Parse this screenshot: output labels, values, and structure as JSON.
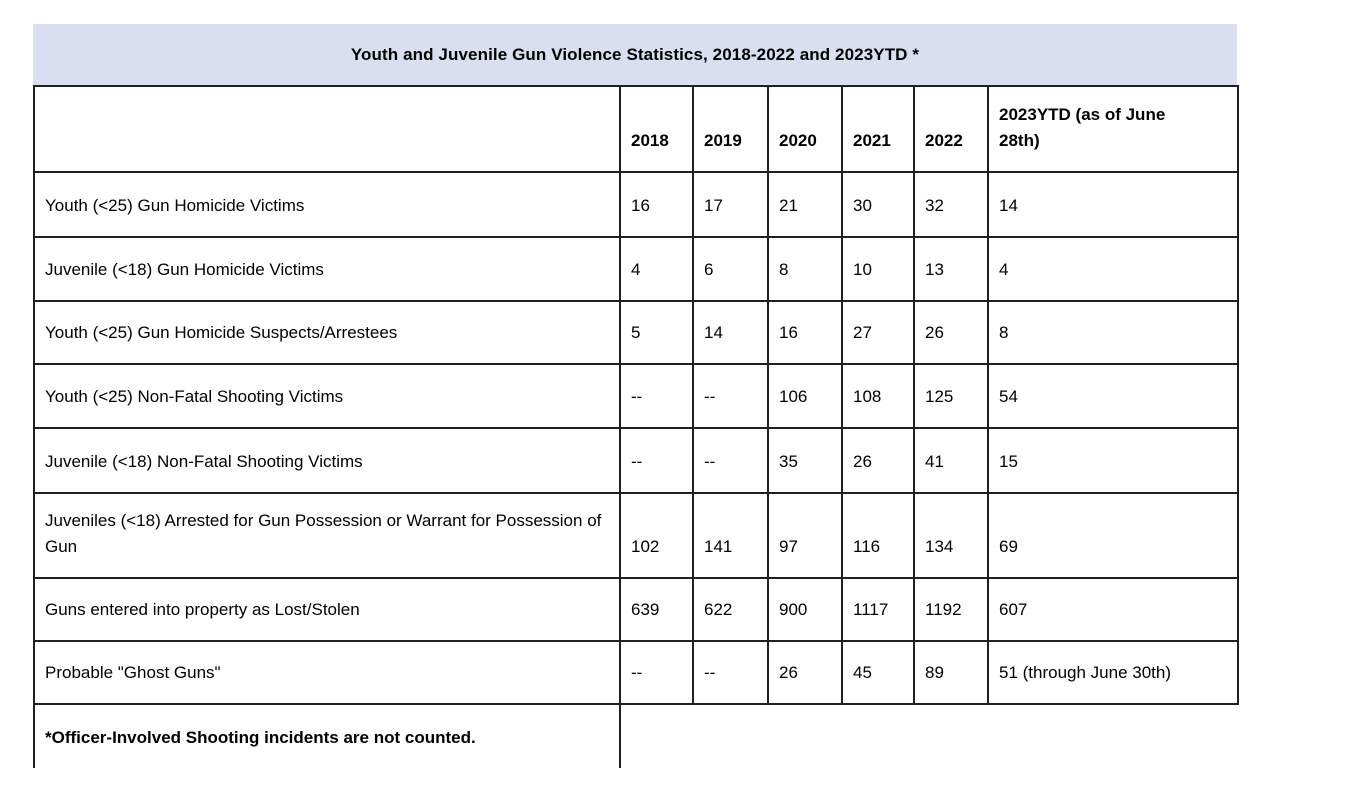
{
  "title": "Youth and Juvenile Gun Violence Statistics, 2018-2022 and 2023YTD *",
  "colors": {
    "title_bg": "#d9def0",
    "border": "#1d2025",
    "text": "#000000"
  },
  "table": {
    "year_headers": [
      "2018",
      "2019",
      "2020",
      "2021",
      "2022"
    ],
    "ytd_header": "2023YTD (as of June 28th)",
    "rows": [
      {
        "label": "Youth (<25) Gun Homicide Victims",
        "values": [
          "16",
          "17",
          "21",
          "30",
          "32"
        ],
        "ytd": "14",
        "ytd_left": false
      },
      {
        "label": "Juvenile (<18) Gun Homicide Victims",
        "values": [
          "4",
          "6",
          "8",
          "10",
          "13"
        ],
        "ytd": "4",
        "ytd_left": false
      },
      {
        "label": "Youth (<25) Gun Homicide Suspects/Arrestees",
        "values": [
          "5",
          "14",
          "16",
          "27",
          "26"
        ],
        "ytd": "8",
        "ytd_left": false
      },
      {
        "label": "Youth (<25) Non-Fatal Shooting Victims",
        "values": [
          "--",
          "--",
          "106",
          "108",
          "125"
        ],
        "ytd": "54",
        "ytd_left": false
      },
      {
        "label": "Juvenile (<18) Non-Fatal Shooting Victims",
        "values": [
          "--",
          "--",
          "35",
          "26",
          "41"
        ],
        "ytd": "15",
        "ytd_left": false
      },
      {
        "label": "Juveniles (<18) Arrested for Gun Possession or Warrant for Possession of Gun",
        "values": [
          "102",
          "141",
          "97",
          "116",
          "134"
        ],
        "ytd": "69",
        "ytd_left": false
      },
      {
        "label": "Guns entered into property as Lost/Stolen",
        "values": [
          "639",
          "622",
          "900",
          "1117",
          "1192"
        ],
        "ytd": "607",
        "ytd_left": false
      },
      {
        "label": "Probable \"Ghost Guns\"",
        "values": [
          "--",
          "--",
          "26",
          "45",
          "89"
        ],
        "ytd": "51 (through June 30th)",
        "ytd_left": true
      }
    ],
    "footnote": "*Officer-Involved Shooting incidents are not counted."
  }
}
